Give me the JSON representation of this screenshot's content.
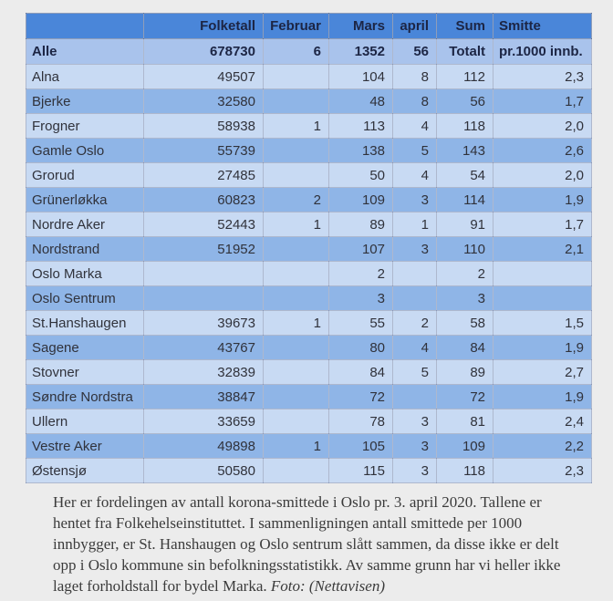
{
  "chart_data": {
    "type": "table",
    "title": "Korona-smittede i Oslo pr. 3. april 2020",
    "column_keys": [
      "bydel",
      "folketall",
      "februar",
      "mars",
      "april",
      "sum",
      "smitte"
    ],
    "header": [
      "",
      "Folketall",
      "Februar",
      "Mars",
      "april",
      "Sum",
      "Smitte"
    ],
    "total_row": [
      "Alle",
      "678730",
      "6",
      "1352",
      "56",
      "Totalt",
      "pr.1000 innb."
    ],
    "rows": [
      [
        "Alna",
        "49507",
        "",
        "104",
        "8",
        "112",
        "2,3"
      ],
      [
        "Bjerke",
        "32580",
        "",
        "48",
        "8",
        "56",
        "1,7"
      ],
      [
        "Frogner",
        "58938",
        "1",
        "113",
        "4",
        "118",
        "2,0"
      ],
      [
        "Gamle Oslo",
        "55739",
        "",
        "138",
        "5",
        "143",
        "2,6"
      ],
      [
        "Grorud",
        "27485",
        "",
        "50",
        "4",
        "54",
        "2,0"
      ],
      [
        "Grünerløkka",
        "60823",
        "2",
        "109",
        "3",
        "114",
        "1,9"
      ],
      [
        "Nordre Aker",
        "52443",
        "1",
        "89",
        "1",
        "91",
        "1,7"
      ],
      [
        "Nordstrand",
        "51952",
        "",
        "107",
        "3",
        "110",
        "2,1"
      ],
      [
        "Oslo Marka",
        "",
        "",
        "2",
        "",
        "2",
        ""
      ],
      [
        "Oslo Sentrum",
        "",
        "",
        "3",
        "",
        "3",
        ""
      ],
      [
        "St.Hanshaugen",
        "39673",
        "1",
        "55",
        "2",
        "58",
        "1,5"
      ],
      [
        "Sagene",
        "43767",
        "",
        "80",
        "4",
        "84",
        "1,9"
      ],
      [
        "Stovner",
        "32839",
        "",
        "84",
        "5",
        "89",
        "2,7"
      ],
      [
        "Søndre Nordstra",
        "38847",
        "",
        "72",
        "",
        "72",
        "1,9"
      ],
      [
        "Ullern",
        "33659",
        "",
        "78",
        "3",
        "81",
        "2,4"
      ],
      [
        "Vestre Aker",
        "49898",
        "1",
        "105",
        "3",
        "109",
        "2,2"
      ],
      [
        "Østensjø",
        "50580",
        "",
        "115",
        "3",
        "118",
        "2,3"
      ]
    ]
  },
  "caption": {
    "text": "Her er fordelingen av antall korona-smittede i Oslo pr. 3. april 2020. Tallene er hentet fra Folkehelseinstituttet. I sammenligningen antall smittede per 1000 innbygger, er St. Hanshaugen og Oslo sentrum slått sammen, da disse ikke er delt opp i Oslo kommune sin befolkningsstatistikk. Av samme grunn har vi heller ikke laget forholdstall for bydel Marka.",
    "credit": "Foto: (Nettavisen)"
  },
  "colors": {
    "page-bg": "#ececec",
    "header-bg": "#4a86d9",
    "total-row-bg": "#a9c3ec",
    "row-light-bg": "#c8daf3",
    "row-medium-bg": "#8fb5e7",
    "header-text": "#1c2544",
    "cell-text": "#30323b",
    "caption-text": "#3b3b3b"
  }
}
